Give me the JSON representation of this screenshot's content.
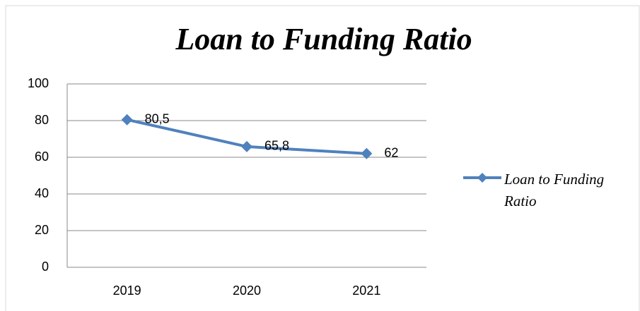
{
  "chart_data": {
    "type": "line",
    "title": "Loan to Funding Ratio",
    "categories": [
      "2019",
      "2020",
      "2021"
    ],
    "series": [
      {
        "name": "Loan to Funding Ratio",
        "color": "#4f81bd",
        "values": [
          80.5,
          65.8,
          62
        ],
        "value_labels": [
          "80,5",
          "65,8",
          "62"
        ]
      }
    ],
    "ylim": [
      0,
      100
    ],
    "yticks": [
      0,
      20,
      40,
      60,
      80,
      100
    ],
    "grid": true,
    "legend": "right"
  }
}
